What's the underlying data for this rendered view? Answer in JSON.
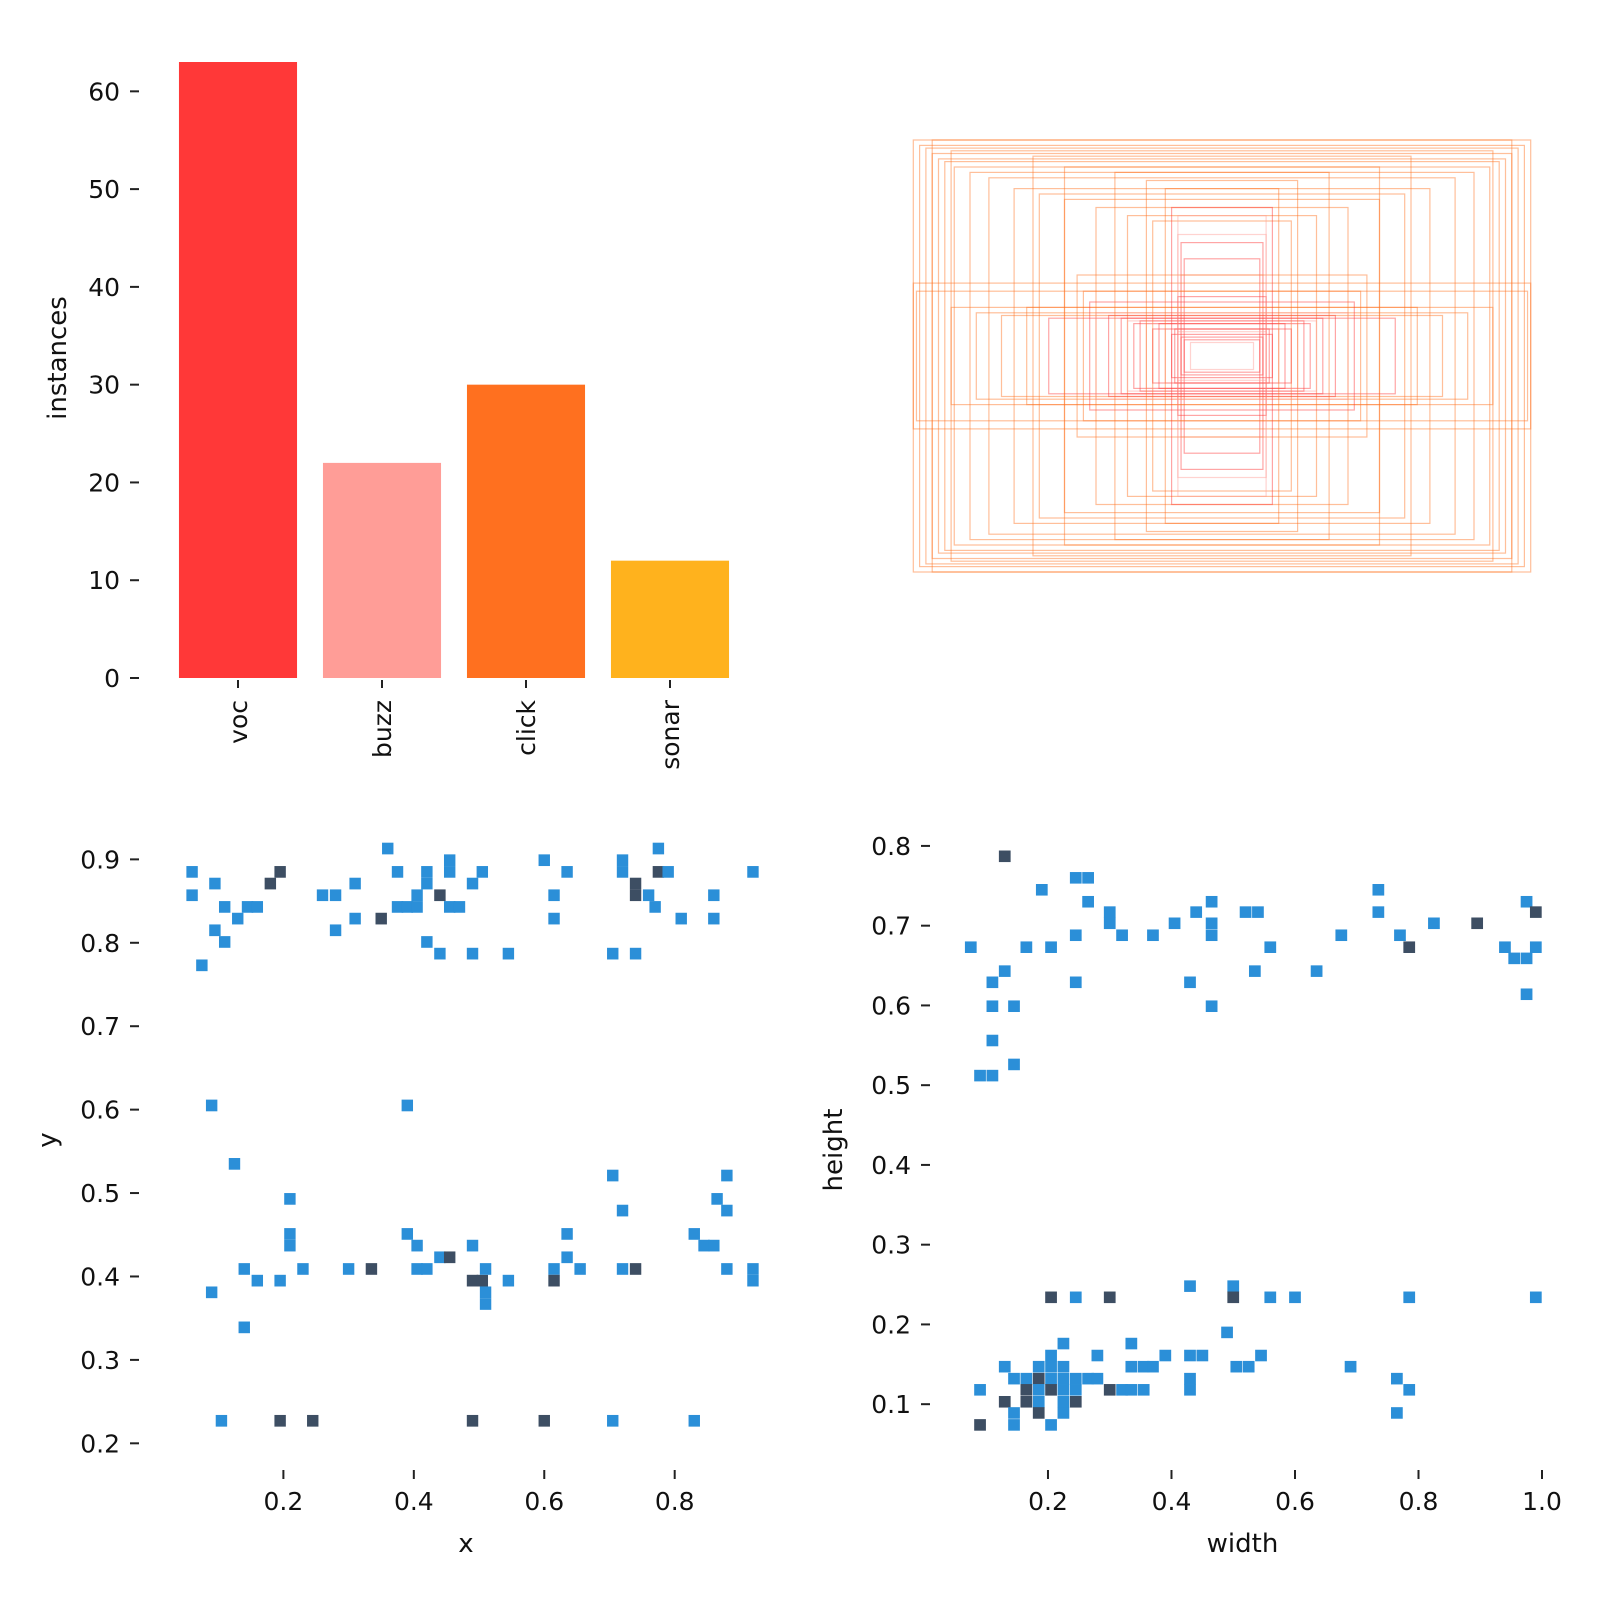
{
  "colors": {
    "voc": "#ff3838",
    "buzz": "#ff9d97",
    "click": "#ff701f",
    "sonar": "#ffb21d",
    "hist_low": "#2b8fd8",
    "hist_high": "#3d4e63",
    "axis": "#222222"
  },
  "chart_data": [
    {
      "type": "bar",
      "categories": [
        "voc",
        "buzz",
        "click",
        "sonar"
      ],
      "values": [
        63,
        22,
        30,
        12
      ],
      "xlabel": "",
      "ylabel": "instances",
      "ylim": [
        0,
        63
      ],
      "yticks": [
        0,
        10,
        20,
        30,
        40,
        50,
        60
      ],
      "grid": false,
      "legend": "none"
    },
    {
      "type": "boxes",
      "description_key": "bounding-box-overlay",
      "boxes_wh": [
        [
          0.98,
          0.8
        ],
        [
          0.96,
          0.78
        ],
        [
          0.94,
          0.77
        ],
        [
          0.92,
          0.75
        ],
        [
          0.9,
          0.73
        ],
        [
          0.88,
          0.72
        ],
        [
          0.85,
          0.7
        ],
        [
          0.8,
          0.68
        ],
        [
          0.74,
          0.66
        ],
        [
          0.66,
          0.62
        ],
        [
          0.58,
          0.6
        ],
        [
          0.5,
          0.58
        ],
        [
          0.4,
          0.55
        ],
        [
          0.3,
          0.52
        ],
        [
          0.22,
          0.5
        ],
        [
          0.14,
          0.45
        ],
        [
          0.13,
          0.42
        ],
        [
          0.12,
          0.36
        ],
        [
          0.13,
          0.3
        ],
        [
          0.14,
          0.22
        ],
        [
          0.98,
          0.27
        ],
        [
          0.97,
          0.24
        ],
        [
          0.86,
          0.18
        ],
        [
          0.78,
          0.16
        ],
        [
          0.7,
          0.15
        ],
        [
          0.62,
          0.18
        ],
        [
          0.55,
          0.14
        ],
        [
          0.46,
          0.3
        ],
        [
          0.44,
          0.24
        ],
        [
          0.42,
          0.2
        ],
        [
          0.4,
          0.16
        ],
        [
          0.36,
          0.15
        ],
        [
          0.32,
          0.14
        ],
        [
          0.3,
          0.13
        ],
        [
          0.28,
          0.12
        ],
        [
          0.26,
          0.13
        ],
        [
          0.24,
          0.12
        ],
        [
          0.22,
          0.1
        ],
        [
          0.2,
          0.12
        ],
        [
          0.18,
          0.1
        ],
        [
          0.16,
          0.08
        ],
        [
          0.15,
          0.1
        ],
        [
          0.14,
          0.09
        ],
        [
          0.13,
          0.07
        ],
        [
          0.12,
          0.06
        ],
        [
          0.1,
          0.05
        ],
        [
          0.92,
          0.8
        ],
        [
          0.86,
          0.76
        ],
        [
          0.6,
          0.74
        ],
        [
          0.5,
          0.7
        ],
        [
          0.34,
          0.68
        ],
        [
          0.24,
          0.65
        ],
        [
          0.18,
          0.62
        ],
        [
          0.16,
          0.55
        ],
        [
          0.14,
          0.52
        ]
      ]
    },
    {
      "type": "heatmap",
      "xlabel": "x",
      "ylabel": "y",
      "xlim": [
        0.02,
        0.94
      ],
      "ylim": [
        0.18,
        0.94
      ],
      "xticks": [
        0.2,
        0.4,
        0.6,
        0.8
      ],
      "yticks": [
        0.2,
        0.3,
        0.4,
        0.5,
        0.6,
        0.7,
        0.8,
        0.9
      ],
      "bin_w": 0.0175,
      "bin_h": 0.014,
      "cells": [
        [
          0.06,
          0.885
        ],
        [
          0.06,
          0.857
        ],
        [
          0.095,
          0.871
        ],
        [
          0.095,
          0.815
        ],
        [
          0.075,
          0.773
        ],
        [
          0.11,
          0.843
        ],
        [
          0.11,
          0.801
        ],
        [
          0.13,
          0.829
        ],
        [
          0.145,
          0.843
        ],
        [
          0.16,
          0.843
        ],
        [
          0.18,
          0.871,
          2
        ],
        [
          0.195,
          0.885,
          2
        ],
        [
          0.26,
          0.857
        ],
        [
          0.28,
          0.857
        ],
        [
          0.28,
          0.815
        ],
        [
          0.31,
          0.871
        ],
        [
          0.31,
          0.829
        ],
        [
          0.35,
          0.829,
          2
        ],
        [
          0.36,
          0.913
        ],
        [
          0.375,
          0.885
        ],
        [
          0.375,
          0.843
        ],
        [
          0.39,
          0.843
        ],
        [
          0.405,
          0.857
        ],
        [
          0.405,
          0.843
        ],
        [
          0.42,
          0.885
        ],
        [
          0.42,
          0.871
        ],
        [
          0.42,
          0.801
        ],
        [
          0.44,
          0.857,
          2
        ],
        [
          0.44,
          0.787
        ],
        [
          0.455,
          0.899
        ],
        [
          0.455,
          0.885
        ],
        [
          0.455,
          0.843
        ],
        [
          0.47,
          0.843
        ],
        [
          0.49,
          0.871
        ],
        [
          0.49,
          0.787
        ],
        [
          0.505,
          0.885
        ],
        [
          0.545,
          0.787
        ],
        [
          0.6,
          0.899
        ],
        [
          0.615,
          0.857
        ],
        [
          0.615,
          0.829
        ],
        [
          0.635,
          0.885
        ],
        [
          0.705,
          0.787
        ],
        [
          0.72,
          0.899
        ],
        [
          0.72,
          0.885
        ],
        [
          0.74,
          0.871,
          2
        ],
        [
          0.74,
          0.857,
          2
        ],
        [
          0.74,
          0.787
        ],
        [
          0.76,
          0.857
        ],
        [
          0.77,
          0.843
        ],
        [
          0.775,
          0.913
        ],
        [
          0.775,
          0.885,
          2
        ],
        [
          0.79,
          0.885
        ],
        [
          0.81,
          0.829
        ],
        [
          0.86,
          0.857
        ],
        [
          0.86,
          0.829
        ],
        [
          0.92,
          0.885
        ],
        [
          0.09,
          0.605
        ],
        [
          0.39,
          0.605
        ],
        [
          0.125,
          0.535
        ],
        [
          0.21,
          0.493
        ],
        [
          0.21,
          0.451
        ],
        [
          0.21,
          0.437
        ],
        [
          0.39,
          0.451
        ],
        [
          0.405,
          0.437
        ],
        [
          0.09,
          0.381
        ],
        [
          0.14,
          0.409
        ],
        [
          0.16,
          0.395
        ],
        [
          0.14,
          0.339
        ],
        [
          0.195,
          0.395
        ],
        [
          0.23,
          0.409
        ],
        [
          0.3,
          0.409
        ],
        [
          0.335,
          0.409,
          2
        ],
        [
          0.405,
          0.409
        ],
        [
          0.42,
          0.409
        ],
        [
          0.44,
          0.423
        ],
        [
          0.455,
          0.423,
          2
        ],
        [
          0.49,
          0.437
        ],
        [
          0.49,
          0.395,
          2
        ],
        [
          0.505,
          0.395,
          2
        ],
        [
          0.51,
          0.409
        ],
        [
          0.51,
          0.381
        ],
        [
          0.51,
          0.367
        ],
        [
          0.545,
          0.395
        ],
        [
          0.615,
          0.409
        ],
        [
          0.615,
          0.395,
          2
        ],
        [
          0.635,
          0.451
        ],
        [
          0.635,
          0.423
        ],
        [
          0.655,
          0.409
        ],
        [
          0.705,
          0.521
        ],
        [
          0.72,
          0.479
        ],
        [
          0.72,
          0.409
        ],
        [
          0.74,
          0.409,
          2
        ],
        [
          0.83,
          0.451
        ],
        [
          0.845,
          0.437
        ],
        [
          0.86,
          0.437
        ],
        [
          0.865,
          0.493
        ],
        [
          0.88,
          0.521
        ],
        [
          0.88,
          0.479
        ],
        [
          0.88,
          0.409
        ],
        [
          0.92,
          0.409
        ],
        [
          0.92,
          0.395
        ],
        [
          0.105,
          0.227
        ],
        [
          0.195,
          0.227,
          2
        ],
        [
          0.245,
          0.227,
          2
        ],
        [
          0.49,
          0.227,
          2
        ],
        [
          0.6,
          0.227,
          2
        ],
        [
          0.705,
          0.227
        ],
        [
          0.83,
          0.227
        ]
      ]
    },
    {
      "type": "heatmap",
      "xlabel": "width",
      "ylabel": "height",
      "xlim": [
        0.03,
        1.0
      ],
      "ylim": [
        0.03,
        0.83
      ],
      "xticks": [
        0.2,
        0.4,
        0.6,
        0.8,
        1.0
      ],
      "yticks": [
        0.1,
        0.2,
        0.3,
        0.4,
        0.5,
        0.6,
        0.7,
        0.8
      ],
      "bin_w": 0.019,
      "bin_h": 0.0145,
      "cells": [
        [
          0.13,
          0.787,
          2
        ],
        [
          0.19,
          0.745
        ],
        [
          0.245,
          0.76
        ],
        [
          0.265,
          0.76
        ],
        [
          0.265,
          0.73
        ],
        [
          0.3,
          0.717
        ],
        [
          0.3,
          0.703
        ],
        [
          0.32,
          0.688
        ],
        [
          0.245,
          0.688
        ],
        [
          0.205,
          0.673
        ],
        [
          0.165,
          0.673
        ],
        [
          0.075,
          0.673
        ],
        [
          0.13,
          0.643
        ],
        [
          0.11,
          0.629
        ],
        [
          0.11,
          0.599
        ],
        [
          0.145,
          0.599
        ],
        [
          0.245,
          0.629
        ],
        [
          0.11,
          0.556
        ],
        [
          0.145,
          0.526
        ],
        [
          0.09,
          0.512
        ],
        [
          0.11,
          0.512
        ],
        [
          0.37,
          0.688
        ],
        [
          0.405,
          0.703
        ],
        [
          0.43,
          0.629
        ],
        [
          0.44,
          0.717
        ],
        [
          0.465,
          0.73
        ],
        [
          0.465,
          0.703
        ],
        [
          0.465,
          0.688
        ],
        [
          0.465,
          0.599
        ],
        [
          0.52,
          0.717
        ],
        [
          0.54,
          0.717
        ],
        [
          0.535,
          0.643
        ],
        [
          0.56,
          0.673
        ],
        [
          0.635,
          0.643
        ],
        [
          0.675,
          0.688
        ],
        [
          0.735,
          0.745
        ],
        [
          0.735,
          0.717
        ],
        [
          0.77,
          0.688
        ],
        [
          0.785,
          0.673,
          2
        ],
        [
          0.825,
          0.703
        ],
        [
          0.895,
          0.703,
          2
        ],
        [
          0.94,
          0.673
        ],
        [
          0.955,
          0.659
        ],
        [
          0.975,
          0.659
        ],
        [
          0.975,
          0.73
        ],
        [
          0.975,
          0.614
        ],
        [
          0.99,
          0.717,
          2
        ],
        [
          0.99,
          0.673
        ],
        [
          0.205,
          0.234,
          2
        ],
        [
          0.245,
          0.234
        ],
        [
          0.3,
          0.234,
          2
        ],
        [
          0.43,
          0.248
        ],
        [
          0.5,
          0.248
        ],
        [
          0.5,
          0.234,
          2
        ],
        [
          0.56,
          0.234
        ],
        [
          0.6,
          0.234
        ],
        [
          0.785,
          0.234
        ],
        [
          0.99,
          0.234
        ],
        [
          0.225,
          0.176
        ],
        [
          0.205,
          0.161
        ],
        [
          0.13,
          0.147
        ],
        [
          0.185,
          0.147
        ],
        [
          0.205,
          0.147
        ],
        [
          0.225,
          0.147
        ],
        [
          0.28,
          0.161
        ],
        [
          0.335,
          0.176
        ],
        [
          0.39,
          0.161
        ],
        [
          0.43,
          0.161
        ],
        [
          0.45,
          0.161
        ],
        [
          0.49,
          0.19
        ],
        [
          0.145,
          0.132
        ],
        [
          0.165,
          0.132
        ],
        [
          0.185,
          0.132,
          2
        ],
        [
          0.205,
          0.132
        ],
        [
          0.225,
          0.132
        ],
        [
          0.245,
          0.132
        ],
        [
          0.265,
          0.132
        ],
        [
          0.28,
          0.132
        ],
        [
          0.335,
          0.147
        ],
        [
          0.355,
          0.147
        ],
        [
          0.37,
          0.147
        ],
        [
          0.43,
          0.132
        ],
        [
          0.505,
          0.147
        ],
        [
          0.525,
          0.147
        ],
        [
          0.545,
          0.161
        ],
        [
          0.69,
          0.147
        ],
        [
          0.765,
          0.132
        ],
        [
          0.09,
          0.118
        ],
        [
          0.165,
          0.118,
          2
        ],
        [
          0.185,
          0.118
        ],
        [
          0.205,
          0.118,
          2
        ],
        [
          0.225,
          0.118
        ],
        [
          0.245,
          0.118
        ],
        [
          0.3,
          0.118,
          2
        ],
        [
          0.32,
          0.118
        ],
        [
          0.335,
          0.118
        ],
        [
          0.355,
          0.118
        ],
        [
          0.43,
          0.118
        ],
        [
          0.785,
          0.118
        ],
        [
          0.13,
          0.103,
          2
        ],
        [
          0.165,
          0.103,
          2
        ],
        [
          0.185,
          0.103
        ],
        [
          0.225,
          0.103
        ],
        [
          0.245,
          0.103,
          2
        ],
        [
          0.145,
          0.089
        ],
        [
          0.185,
          0.089,
          2
        ],
        [
          0.225,
          0.089
        ],
        [
          0.765,
          0.089
        ],
        [
          0.09,
          0.074,
          2
        ],
        [
          0.145,
          0.074
        ],
        [
          0.205,
          0.074
        ]
      ]
    }
  ]
}
